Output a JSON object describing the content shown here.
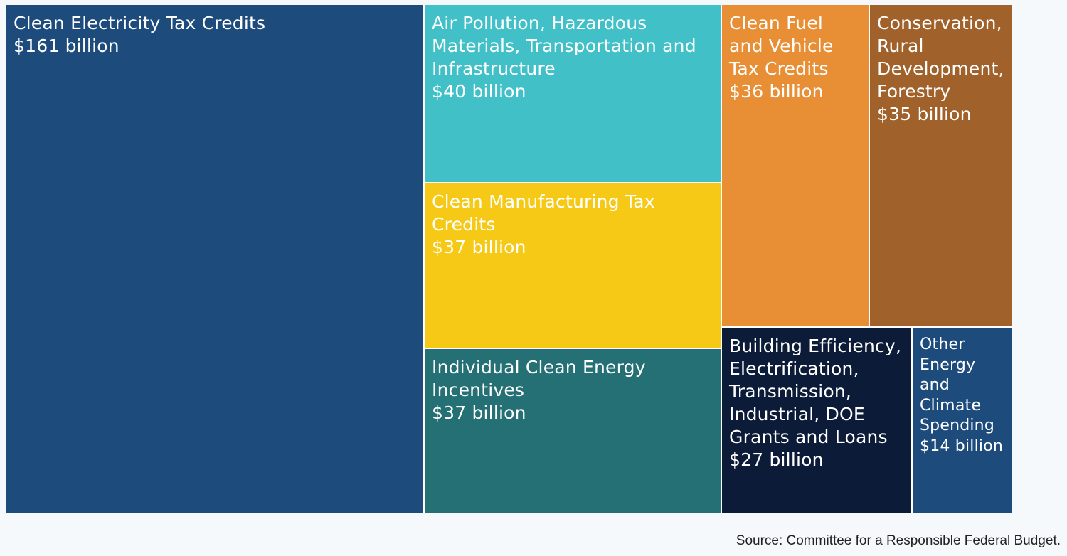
{
  "chart_data": {
    "type": "treemap",
    "unit": "billion USD",
    "items": [
      {
        "id": "clean-electricity",
        "label": "Clean Electricity Tax Credits",
        "value": 161,
        "value_label": "$161 billion",
        "color": "#1d4b7c"
      },
      {
        "id": "air-pollution",
        "label": "Air Pollution, Hazardous Materials, Transportation and Infrastructure",
        "value": 40,
        "value_label": "$40 billion",
        "color": "#41c0c8"
      },
      {
        "id": "clean-manufacturing",
        "label": "Clean Manufacturing Tax Credits",
        "value": 37,
        "value_label": "$37 billion",
        "color": "#f5c915"
      },
      {
        "id": "individual-clean-energy",
        "label": "Individual Clean Energy Incentives",
        "value": 37,
        "value_label": "$37 billion",
        "color": "#257074"
      },
      {
        "id": "clean-fuel-vehicle",
        "label": "Clean Fuel and Vehicle Tax Credits",
        "value": 36,
        "value_label": "$36 billion",
        "color": "#e88f36"
      },
      {
        "id": "conservation",
        "label": "Conservation, Rural Development, Forestry",
        "value": 35,
        "value_label": "$35 billion",
        "color": "#a0622a"
      },
      {
        "id": "building-efficiency",
        "label": "Building Efficiency, Electrification, Transmission, Industrial, DOE Grants and Loans",
        "value": 27,
        "value_label": "$27 billion",
        "color": "#0c1b38"
      },
      {
        "id": "other-energy",
        "label": "Other Energy and Climate Spending",
        "value": 14,
        "value_label": "$14 billion",
        "color": "#1d4b7c"
      }
    ]
  },
  "source": "Source: Committee for a Responsible Federal Budget."
}
